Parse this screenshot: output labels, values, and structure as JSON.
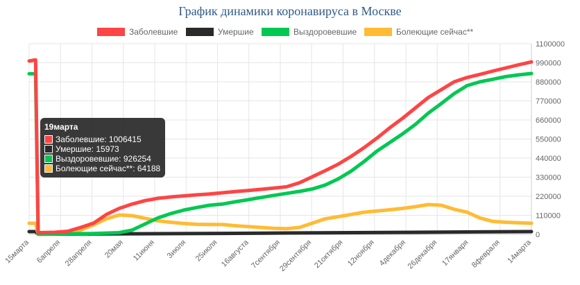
{
  "chart_data": {
    "type": "line",
    "title": "График динамики коронавируса в Москве",
    "x_categories": [
      "15марта",
      "6апреля",
      "28апреля",
      "20мая",
      "11июня",
      "3июля",
      "25июля",
      "16августа",
      "7сентября",
      "29сентября",
      "21октября",
      "12ноября",
      "4декабря",
      "26декабря",
      "17января",
      "8февраля",
      "14марта"
    ],
    "y_ticks": [
      "0",
      "110000",
      "220000",
      "330000",
      "440000",
      "550000",
      "660000",
      "770000",
      "880000",
      "990000",
      "1100000"
    ],
    "ylim": [
      0,
      1100000
    ],
    "y_axis_position": "right",
    "grid": true,
    "legend_position": "top",
    "series": [
      {
        "name": "Заболевшие",
        "color": "#ff4444",
        "points": [
          [
            0,
            1000000
          ],
          [
            0.5,
            1006415
          ],
          [
            0.7,
            10000
          ],
          [
            2,
            12000
          ],
          [
            3,
            18000
          ],
          [
            4,
            40000
          ],
          [
            5,
            65000
          ],
          [
            6,
            115000
          ],
          [
            7,
            150000
          ],
          [
            8,
            175000
          ],
          [
            9,
            195000
          ],
          [
            10,
            208000
          ],
          [
            11,
            216000
          ],
          [
            12,
            222000
          ],
          [
            13,
            228000
          ],
          [
            14,
            233000
          ],
          [
            15,
            240000
          ],
          [
            16,
            247000
          ],
          [
            17,
            253000
          ],
          [
            18,
            260000
          ],
          [
            19,
            267000
          ],
          [
            20,
            275000
          ],
          [
            21,
            298000
          ],
          [
            22,
            333000
          ],
          [
            23,
            368000
          ],
          [
            24,
            405000
          ],
          [
            25,
            450000
          ],
          [
            26,
            500000
          ],
          [
            27,
            555000
          ],
          [
            28,
            615000
          ],
          [
            29,
            670000
          ],
          [
            30,
            730000
          ],
          [
            31,
            790000
          ],
          [
            32,
            835000
          ],
          [
            33,
            880000
          ],
          [
            34,
            905000
          ],
          [
            35,
            923000
          ],
          [
            36,
            942000
          ],
          [
            37,
            960000
          ],
          [
            38,
            978000
          ],
          [
            39,
            995000
          ]
        ]
      },
      {
        "name": "Умершие",
        "color": "#2a2a2a",
        "points": [
          [
            0,
            15973
          ],
          [
            0.5,
            15973
          ],
          [
            0.7,
            1000
          ],
          [
            5,
            2500
          ],
          [
            10,
            4000
          ],
          [
            15,
            5500
          ],
          [
            20,
            8000
          ],
          [
            25,
            10000
          ],
          [
            30,
            12000
          ],
          [
            35,
            14500
          ],
          [
            39,
            16000
          ]
        ]
      },
      {
        "name": "Выздоровевшие",
        "color": "#00c851",
        "points": [
          [
            0,
            926254
          ],
          [
            0.5,
            926254
          ],
          [
            0.7,
            2000
          ],
          [
            5,
            5000
          ],
          [
            7,
            10000
          ],
          [
            8,
            25000
          ],
          [
            9,
            60000
          ],
          [
            10,
            95000
          ],
          [
            11,
            120000
          ],
          [
            12,
            140000
          ],
          [
            13,
            155000
          ],
          [
            14,
            168000
          ],
          [
            15,
            175000
          ],
          [
            16,
            188000
          ],
          [
            17,
            200000
          ],
          [
            18,
            213000
          ],
          [
            19,
            225000
          ],
          [
            20,
            237000
          ],
          [
            21,
            248000
          ],
          [
            22,
            262000
          ],
          [
            23,
            285000
          ],
          [
            24,
            320000
          ],
          [
            25,
            365000
          ],
          [
            26,
            420000
          ],
          [
            27,
            480000
          ],
          [
            28,
            530000
          ],
          [
            29,
            580000
          ],
          [
            30,
            635000
          ],
          [
            31,
            700000
          ],
          [
            32,
            755000
          ],
          [
            33,
            812000
          ],
          [
            34,
            858000
          ],
          [
            35,
            880000
          ],
          [
            36,
            895000
          ],
          [
            37,
            910000
          ],
          [
            38,
            920000
          ],
          [
            39,
            928000
          ]
        ]
      },
      {
        "name": "Болеющие сейчас**",
        "color": "#ffbb33",
        "points": [
          [
            0,
            64188
          ],
          [
            0.5,
            64188
          ],
          [
            0.7,
            1000
          ],
          [
            3,
            5000
          ],
          [
            4,
            25000
          ],
          [
            5,
            55000
          ],
          [
            6,
            90000
          ],
          [
            7,
            112000
          ],
          [
            8,
            108000
          ],
          [
            9,
            93000
          ],
          [
            10,
            78000
          ],
          [
            11,
            70000
          ],
          [
            12,
            63000
          ],
          [
            13,
            58000
          ],
          [
            14,
            57000
          ],
          [
            15,
            57000
          ],
          [
            16,
            50000
          ],
          [
            17,
            45000
          ],
          [
            18,
            40000
          ],
          [
            19,
            35000
          ],
          [
            20,
            33000
          ],
          [
            21,
            40000
          ],
          [
            22,
            65000
          ],
          [
            23,
            90000
          ],
          [
            24,
            102000
          ],
          [
            25,
            115000
          ],
          [
            26,
            128000
          ],
          [
            27,
            135000
          ],
          [
            28,
            142000
          ],
          [
            29,
            150000
          ],
          [
            30,
            160000
          ],
          [
            31,
            172000
          ],
          [
            32,
            168000
          ],
          [
            33,
            145000
          ],
          [
            34,
            128000
          ],
          [
            35,
            95000
          ],
          [
            36,
            75000
          ],
          [
            37,
            70000
          ],
          [
            38,
            67000
          ],
          [
            39,
            64000
          ]
        ]
      }
    ]
  },
  "tooltip": {
    "title": "19марта",
    "rows": [
      {
        "color": "#ff4444",
        "text": "Заболевшие: 1006415"
      },
      {
        "color": "#2a2a2a",
        "text": "Умершие: 15973"
      },
      {
        "color": "#00c851",
        "text": "Выздоровевшие: 926254"
      },
      {
        "color": "#ffbb33",
        "text": "Болеющие сейчас**: 64188"
      }
    ]
  }
}
